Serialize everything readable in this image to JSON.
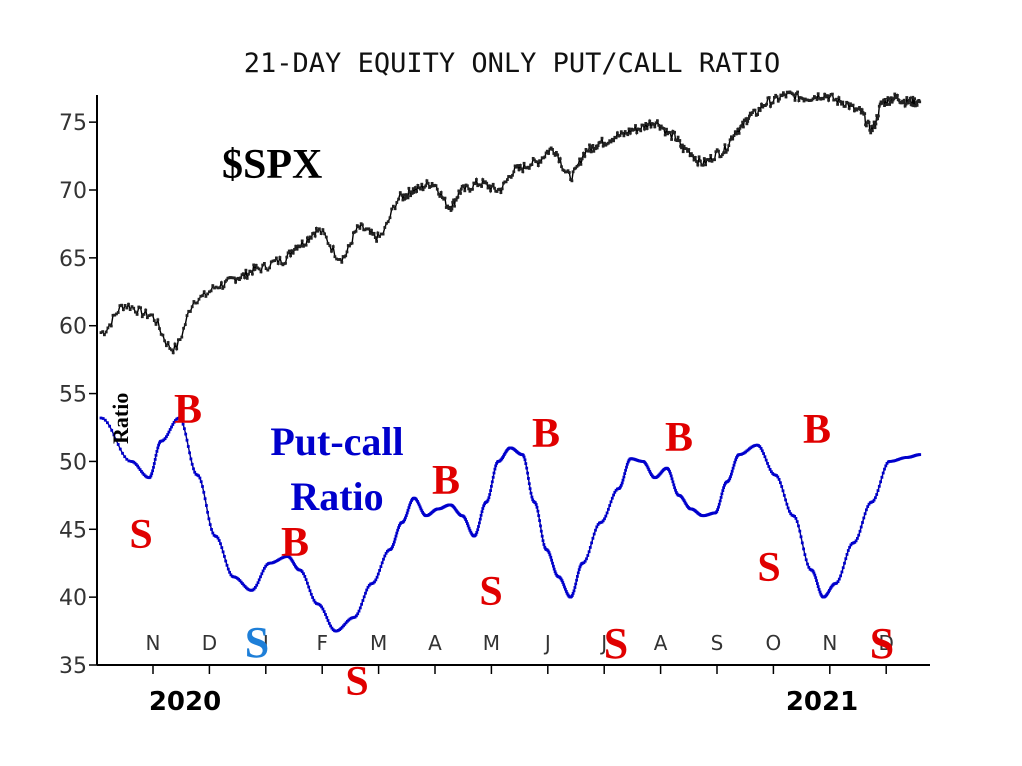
{
  "chart_data": {
    "type": "line",
    "title": "21-DAY EQUITY ONLY PUT/CALL RATIO",
    "ylim": [
      35,
      77
    ],
    "yticks": [
      35,
      40,
      45,
      50,
      55,
      60,
      65,
      70,
      75
    ],
    "months": [
      "N",
      "D",
      "J",
      "F",
      "M",
      "A",
      "M",
      "J",
      "J",
      "A",
      "S",
      "O",
      "N",
      "D"
    ],
    "years": [
      "2020",
      "2021"
    ],
    "series": [
      {
        "name": "$SPX",
        "color": "#000000",
        "marker_color": "#222222",
        "x": [
          0,
          0.4,
          0.8,
          1.2,
          1.6,
          2.0,
          2.3,
          2.6,
          3.0,
          3.3,
          3.6,
          4.0,
          4.3,
          4.6,
          5.0,
          5.2,
          5.5,
          5.8,
          6.0,
          6.3,
          6.6,
          6.9,
          7.2,
          7.5,
          7.8,
          8.1,
          8.3,
          8.6,
          8.9,
          9.2,
          9.5,
          9.7,
          10.0,
          10.3,
          10.6,
          10.8,
          11.1,
          11.4,
          11.7,
          12.0,
          12.3,
          12.6,
          12.8,
          13.0,
          13.2,
          13.4,
          13.6
        ],
        "values": [
          59.5,
          61.5,
          60.8,
          58.3,
          62.0,
          63.0,
          63.6,
          64.2,
          64.8,
          66.0,
          67.0,
          65.0,
          67.2,
          66.5,
          69.5,
          70.0,
          70.5,
          68.8,
          70.0,
          70.5,
          70.0,
          71.5,
          72.0,
          73.0,
          71.0,
          73.0,
          73.5,
          74.0,
          74.5,
          75.0,
          74.0,
          73.0,
          72.0,
          72.8,
          74.5,
          75.5,
          76.5,
          77.0,
          76.8,
          77.0,
          76.5,
          75.8,
          74.5,
          76.5,
          76.8,
          76.5,
          76.5
        ]
      },
      {
        "name": "Put-call Ratio",
        "color": "#00008b",
        "marker_color": "#0000cc",
        "x": [
          0,
          0.5,
          0.8,
          1.0,
          1.3,
          1.6,
          1.9,
          2.2,
          2.5,
          2.8,
          3.1,
          3.3,
          3.6,
          3.9,
          4.2,
          4.5,
          4.8,
          5.0,
          5.2,
          5.4,
          5.6,
          5.8,
          6.0,
          6.2,
          6.4,
          6.6,
          6.8,
          7.0,
          7.2,
          7.4,
          7.6,
          7.8,
          8.0,
          8.3,
          8.6,
          8.8,
          9.0,
          9.2,
          9.4,
          9.6,
          9.8,
          10.0,
          10.2,
          10.4,
          10.6,
          10.9,
          11.2,
          11.5,
          11.8,
          12.0,
          12.2,
          12.5,
          12.8,
          13.1,
          13.4,
          13.6
        ],
        "values": [
          53.2,
          50.0,
          48.8,
          51.5,
          53.2,
          49.0,
          44.5,
          41.5,
          40.5,
          42.5,
          43.0,
          42.0,
          39.5,
          37.5,
          38.5,
          41.0,
          43.5,
          45.5,
          47.3,
          46.0,
          46.5,
          46.8,
          46.0,
          44.5,
          47.0,
          50.0,
          51.0,
          50.5,
          47.0,
          43.5,
          41.5,
          40.0,
          42.5,
          45.5,
          48.0,
          50.2,
          50.0,
          48.8,
          49.5,
          47.5,
          46.5,
          46.0,
          46.2,
          48.5,
          50.5,
          51.2,
          49.0,
          46.0,
          42.0,
          40.0,
          41.0,
          44.0,
          47.0,
          50.0,
          50.3,
          50.5
        ]
      }
    ],
    "annotations": [
      {
        "text": "$SPX",
        "color": "#000000"
      },
      {
        "text": "Ratio",
        "color": "#000000"
      },
      {
        "text": "Put-call",
        "color": "#0000cc"
      },
      {
        "text": "Ratio",
        "color": "#0000cc"
      },
      {
        "text": "B",
        "color": "#e00000"
      },
      {
        "text": "S",
        "color": "#e00000"
      },
      {
        "text": "B",
        "color": "#e00000"
      },
      {
        "text": "S",
        "color": "#1e7fd8"
      },
      {
        "text": "S",
        "color": "#e00000"
      },
      {
        "text": "B",
        "color": "#e00000"
      },
      {
        "text": "S",
        "color": "#e00000"
      },
      {
        "text": "B",
        "color": "#e00000"
      },
      {
        "text": "S",
        "color": "#e00000"
      },
      {
        "text": "B",
        "color": "#e00000"
      },
      {
        "text": "S",
        "color": "#e00000"
      },
      {
        "text": "B",
        "color": "#e00000"
      },
      {
        "text": "S",
        "color": "#e00000"
      }
    ]
  }
}
